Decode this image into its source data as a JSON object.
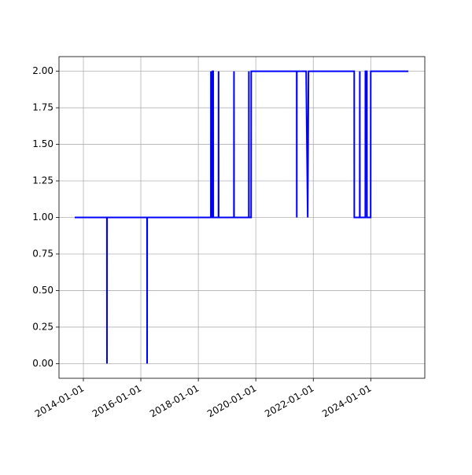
{
  "chart_data": {
    "type": "line",
    "x": [
      "2013-09-13",
      "2014-10-27",
      "2014-10-28",
      "2014-10-29",
      "2016-03-20",
      "2016-03-21",
      "2016-03-22",
      "2018-06-09",
      "2018-06-10",
      "2018-06-11",
      "2018-06-29",
      "2018-06-30",
      "2018-07-09",
      "2018-07-10",
      "2018-09-14",
      "2018-09-15",
      "2018-09-16",
      "2019-03-29",
      "2019-03-30",
      "2019-03-31",
      "2019-10-04",
      "2019-10-05",
      "2019-10-06",
      "2019-11-03",
      "2019-11-04",
      "2021-06-04",
      "2021-06-05",
      "2021-06-06",
      "2021-10-02",
      "2021-10-22",
      "2021-11-01",
      "2023-06-05",
      "2023-06-06",
      "2023-08-14",
      "2023-08-15",
      "2023-08-16",
      "2023-10-24",
      "2023-10-25",
      "2023-11-13",
      "2023-11-14",
      "2023-12-31",
      "2024-01-01",
      "2025-04-23"
    ],
    "series": [
      {
        "color": "#0000ff",
        "values": [
          1,
          1,
          0,
          1,
          1,
          0,
          1,
          1,
          2,
          1,
          1,
          2,
          2,
          1,
          1,
          2,
          1,
          1,
          2,
          1,
          1,
          2,
          1,
          1,
          2,
          2,
          1,
          2,
          2,
          1,
          2,
          2,
          1,
          1,
          2,
          1,
          1,
          2,
          2,
          1,
          1,
          2,
          2
        ]
      }
    ],
    "xlim": [
      "2013-02-25",
      "2025-11-18"
    ],
    "xticks": [
      "2014-01-01",
      "2016-01-01",
      "2018-01-01",
      "2020-01-01",
      "2022-01-01",
      "2024-01-01"
    ],
    "ylim": [
      -0.1,
      2.1
    ],
    "yticks": [
      {
        "value": 0,
        "label": "0.00"
      },
      {
        "value": 0.25,
        "label": "0.25"
      },
      {
        "value": 0.5,
        "label": "0.50"
      },
      {
        "value": 0.75,
        "label": "0.75"
      },
      {
        "value": 1,
        "label": "1.00"
      },
      {
        "value": 1.25,
        "label": "1.25"
      },
      {
        "value": 1.5,
        "label": "1.50"
      },
      {
        "value": 1.75,
        "label": "1.75"
      },
      {
        "value": 2,
        "label": "2.00"
      }
    ],
    "grid": true
  }
}
